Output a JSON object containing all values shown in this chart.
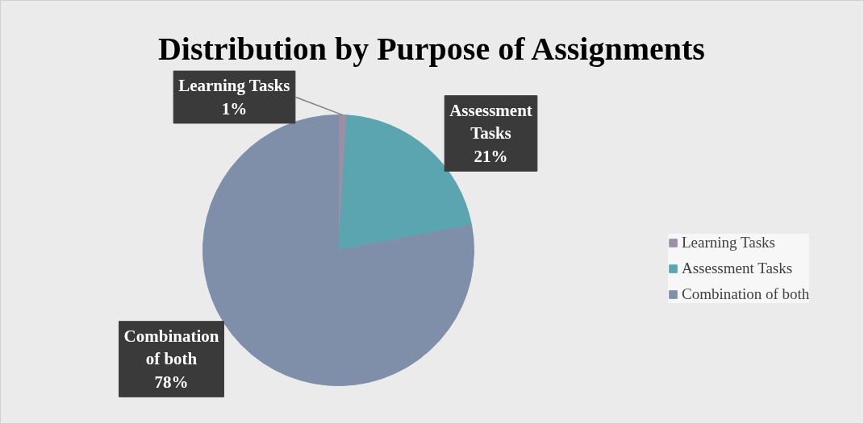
{
  "chart_data": {
    "type": "pie",
    "title": "Distribution by Purpose of Assignments",
    "categories": [
      "Learning Tasks",
      "Assessment Tasks",
      "Combination of both"
    ],
    "values": [
      1,
      21,
      78
    ],
    "colors": [
      "#9d90a6",
      "#5aa5b0",
      "#7f8faa"
    ],
    "value_labels": [
      "1%",
      "21%",
      "78%"
    ],
    "legend": "right"
  }
}
